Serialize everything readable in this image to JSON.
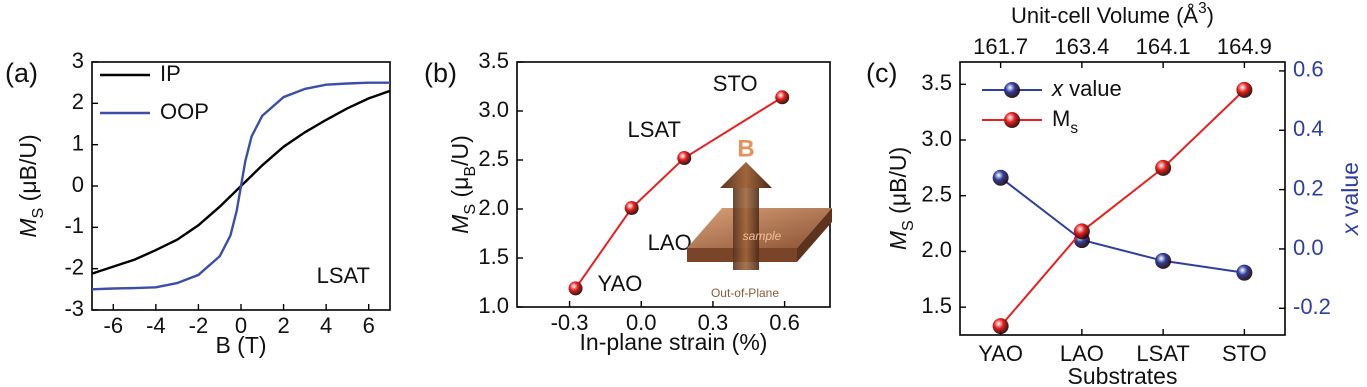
{
  "chart_data": [
    {
      "type": "line",
      "label": "(a)",
      "x_label": "B (T)",
      "y_label": [
        {
          "text": "M",
          "style": "italic"
        },
        {
          "text": "S",
          "style": "sub"
        },
        {
          "text": " (μB/U)"
        }
      ],
      "xlim": [
        -7,
        7
      ],
      "ylim": [
        -3,
        3
      ],
      "xticks": [
        -6,
        -4,
        -2,
        0,
        2,
        4,
        6
      ],
      "yticks": [
        -3,
        -2,
        -1,
        0,
        1,
        2,
        3
      ],
      "legend": "upper left",
      "annotation": "LSAT",
      "series": [
        {
          "name": "IP",
          "color": "#000000",
          "x": [
            -7,
            -6,
            -5,
            -4,
            -3,
            -2,
            -1,
            0,
            1,
            2,
            3,
            4,
            5,
            6,
            7
          ],
          "values": [
            -2.12,
            -1.95,
            -1.78,
            -1.55,
            -1.3,
            -0.95,
            -0.5,
            0,
            0.5,
            0.95,
            1.3,
            1.6,
            1.88,
            2.12,
            2.3
          ]
        },
        {
          "name": "OOP",
          "color": "#3b4fa8",
          "x": [
            -7,
            -6,
            -5,
            -4,
            -3,
            -2,
            -1,
            -0.5,
            -0.2,
            0,
            0.2,
            0.5,
            1,
            2,
            3,
            4,
            5,
            6,
            7
          ],
          "values": [
            -2.5,
            -2.48,
            -2.47,
            -2.45,
            -2.35,
            -2.15,
            -1.7,
            -1.2,
            -0.6,
            0,
            0.6,
            1.2,
            1.7,
            2.15,
            2.35,
            2.45,
            2.48,
            2.5,
            2.5
          ]
        }
      ]
    },
    {
      "type": "scatter",
      "label": "(b)",
      "x_label": "In-plane strain (%)",
      "y_label": [
        {
          "text": "M",
          "style": "italic"
        },
        {
          "text": "S",
          "style": "sub"
        },
        {
          "text": " (μ"
        },
        {
          "text": "B",
          "style": "sub"
        },
        {
          "text": "/U)"
        }
      ],
      "xlim": [
        -0.52,
        0.79
      ],
      "ylim": [
        1.0,
        3.5
      ],
      "xticks": [
        -0.3,
        {
          "value": 0,
          "label": "0.0"
        },
        0.3,
        0.6
      ],
      "yticks": [
        {
          "value": 1,
          "label": "1.0"
        },
        1.5,
        {
          "value": 2,
          "label": "2.0"
        },
        2.5,
        {
          "value": 3,
          "label": "3.0"
        },
        3.5
      ],
      "color": "#e8201f",
      "point_labels": [
        "YAO",
        "LAO",
        "LSAT",
        "STO"
      ],
      "x": [
        -0.275,
        -0.04,
        0.18,
        0.59
      ],
      "values": [
        1.19,
        2.01,
        2.52,
        3.14
      ],
      "inset": {
        "arrow_label": "B",
        "sample_label": "sample",
        "caption": "Out-of-Plane"
      }
    },
    {
      "type": "combo",
      "label": "(c)",
      "x_label": "Substrates",
      "top_axis": {
        "label": [
          {
            "text": "Unit-cell Volume (Å"
          },
          {
            "text": "3",
            "style": "sup"
          },
          {
            "text": ")"
          }
        ],
        "categories": [
          "161.7",
          "163.4",
          "164.1",
          "164.9"
        ]
      },
      "categories": [
        "YAO",
        "LAO",
        "LSAT",
        "STO"
      ],
      "y_label": [
        {
          "text": "M",
          "style": "italic"
        },
        {
          "text": "S",
          "style": "sub"
        },
        {
          "text": " (μB/U)"
        }
      ],
      "y2_label": [
        {
          "text": "x",
          "style": "italic"
        },
        {
          "text": " value"
        }
      ],
      "ylim": [
        1.25,
        3.7
      ],
      "yticks": [
        1.5,
        {
          "value": 2,
          "label": "2.0"
        },
        2.5,
        {
          "value": 3,
          "label": "3.0"
        },
        3.5
      ],
      "y2lim": [
        -0.29,
        0.63
      ],
      "y2ticks": [
        -0.2,
        {
          "value": 0,
          "label": "0.0"
        },
        0.2,
        0.4,
        0.6
      ],
      "y2_color": "#2f3f9e",
      "legend": "upper left",
      "series": [
        {
          "name": [
            {
              "text": "x",
              "style": "italic"
            },
            {
              "text": " value"
            }
          ],
          "color": "#2f3f9e",
          "axis": "y2",
          "values": [
            0.24,
            0.03,
            -0.04,
            -0.08
          ]
        },
        {
          "name": [
            {
              "text": "M"
            },
            {
              "text": "s",
              "style": "sub"
            }
          ],
          "color": "#e8201f",
          "values": [
            1.33,
            2.18,
            2.75,
            3.45
          ]
        }
      ]
    }
  ]
}
